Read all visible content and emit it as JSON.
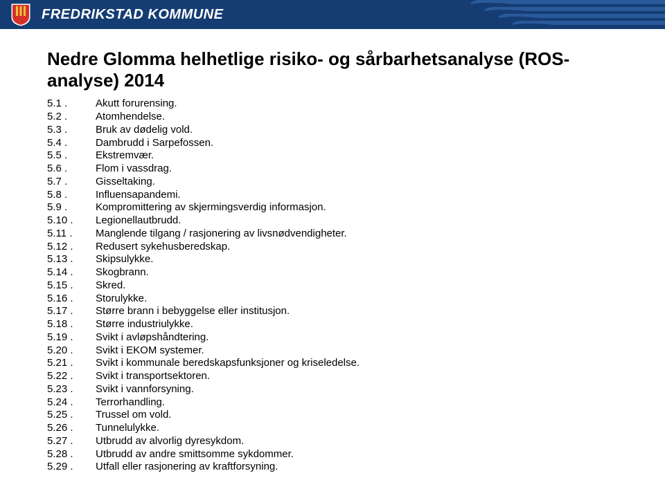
{
  "header": {
    "org_name": "FREDRIKSTAD KOMMUNE",
    "bg_color": "#153d73",
    "badge_colors": {
      "red": "#d6322a",
      "yellow": "#f2c33b",
      "white": "#ffffff"
    }
  },
  "document": {
    "title": "Nedre Glomma helhetlige risiko- og sårbarhetsanalyse (ROS-analyse) 2014",
    "title_fontsize": 26,
    "body_fontsize": 15,
    "items": [
      {
        "num": "5.1 .",
        "text": "Akutt forurensing."
      },
      {
        "num": "5.2 .",
        "text": "Atomhendelse."
      },
      {
        "num": "5.3 .",
        "text": "Bruk av dødelig vold."
      },
      {
        "num": "5.4 .",
        "text": "Dambrudd i Sarpefossen."
      },
      {
        "num": "5.5 .",
        "text": "Ekstremvær."
      },
      {
        "num": "5.6 .",
        "text": "Flom i vassdrag."
      },
      {
        "num": "5.7 .",
        "text": "Gisseltaking."
      },
      {
        "num": "5.8 .",
        "text": "Influensapandemi."
      },
      {
        "num": "5.9 .",
        "text": "Kompromittering av skjermingsverdig informasjon."
      },
      {
        "num": "5.10 .",
        "text": "Legionellautbrudd."
      },
      {
        "num": "5.11 .",
        "text": "Manglende tilgang / rasjonering av livsnødvendigheter."
      },
      {
        "num": "5.12 .",
        "text": "Redusert sykehusberedskap."
      },
      {
        "num": "5.13 .",
        "text": "Skipsulykke."
      },
      {
        "num": "5.14 .",
        "text": "Skogbrann."
      },
      {
        "num": "5.15 .",
        "text": "Skred."
      },
      {
        "num": "5.16 .",
        "text": "Storulykke."
      },
      {
        "num": "5.17 .",
        "text": "Større brann i bebyggelse eller institusjon."
      },
      {
        "num": "5.18 .",
        "text": "Større industriulykke."
      },
      {
        "num": "5.19 .",
        "text": "Svikt i avløpshåndtering."
      },
      {
        "num": "5.20 .",
        "text": "Svikt i EKOM systemer."
      },
      {
        "num": "5.21 .",
        "text": "Svikt i kommunale beredskapsfunksjoner og kriseledelse."
      },
      {
        "num": "5.22 .",
        "text": "Svikt i transportsektoren."
      },
      {
        "num": "5.23 .",
        "text": "Svikt i vannforsyning."
      },
      {
        "num": "5.24 .",
        "text": "Terrorhandling."
      },
      {
        "num": "5.25 .",
        "text": "Trussel om vold."
      },
      {
        "num": "5.26 .",
        "text": "Tunnelulykke."
      },
      {
        "num": "5.27 .",
        "text": "Utbrudd av alvorlig dyresykdom."
      },
      {
        "num": "5.28 .",
        "text": "Utbrudd av andre smittsomme sykdommer."
      },
      {
        "num": "5.29 .",
        "text": "Utfall eller rasjonering av kraftforsyning."
      }
    ]
  }
}
